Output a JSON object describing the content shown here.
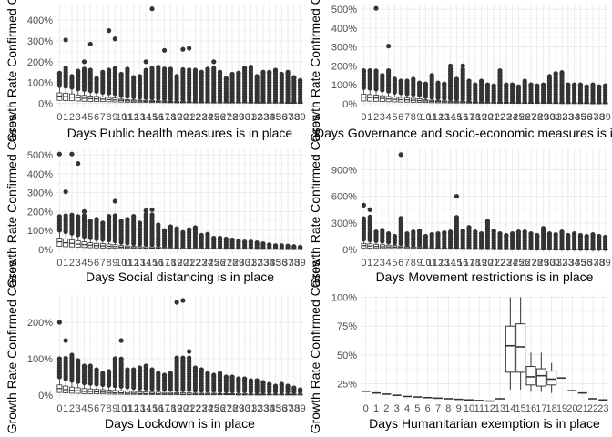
{
  "chart_data": [
    {
      "type": "boxplot",
      "xlabel": "Days Public health measures is in place",
      "ylabel": "Growth Rate Confirmed Cases",
      "yticks": [
        0,
        100,
        200,
        300,
        400
      ],
      "ylim": [
        -20,
        480
      ],
      "x_ticks": [
        "0",
        "1",
        "2",
        "3",
        "4",
        "5",
        "6",
        "7",
        "8",
        "9",
        "10",
        "11",
        "12",
        "13",
        "14",
        "15",
        "16",
        "17",
        "18",
        "19",
        "20",
        "21",
        "22",
        "23",
        "24",
        "25",
        "26",
        "27",
        "28",
        "29",
        "30",
        "31",
        "32",
        "33",
        "34",
        "35",
        "36",
        "37",
        "38",
        "39"
      ],
      "medians": [
        35,
        32,
        30,
        27,
        24,
        22,
        21,
        20,
        18,
        16,
        14,
        12,
        11,
        10,
        9,
        8,
        8,
        7,
        6,
        5,
        5,
        5,
        4,
        4,
        4,
        3,
        3,
        3,
        3,
        3,
        3,
        2,
        2,
        2,
        2,
        2,
        2,
        2,
        2,
        2
      ],
      "q3": [
        50,
        48,
        45,
        40,
        38,
        35,
        33,
        30,
        28,
        26,
        20,
        18,
        16,
        15,
        14,
        13,
        12,
        11,
        10,
        9,
        9,
        8,
        8,
        7,
        7,
        6,
        6,
        6,
        5,
        5,
        5,
        5,
        4,
        4,
        4,
        4,
        4,
        3,
        3,
        3
      ],
      "outlier_max": [
        145,
        305,
        130,
        155,
        200,
        285,
        120,
        150,
        350,
        310,
        140,
        165,
        125,
        130,
        200,
        455,
        175,
        255,
        165,
        130,
        260,
        265,
        160,
        150,
        165,
        200,
        150,
        120,
        140,
        145,
        170,
        175,
        130,
        150,
        150,
        160,
        140,
        150,
        125,
        110
      ]
    },
    {
      "type": "boxplot",
      "xlabel": "Days Governance and socio-economic measures is in place",
      "ylabel": "Growth Rate Confirmed Cases",
      "yticks": [
        0,
        100,
        200,
        300,
        400,
        500
      ],
      "ylim": [
        -20,
        530
      ],
      "x_ticks": [
        "0",
        "1",
        "2",
        "3",
        "4",
        "5",
        "6",
        "7",
        "8",
        "9",
        "10",
        "11",
        "12",
        "13",
        "14",
        "15",
        "16",
        "17",
        "18",
        "19",
        "20",
        "21",
        "22",
        "23",
        "24",
        "25",
        "26",
        "27",
        "28",
        "29",
        "30",
        "31",
        "32",
        "33",
        "34",
        "35",
        "36",
        "37",
        "38",
        "39"
      ],
      "medians": [
        35,
        32,
        30,
        28,
        25,
        23,
        21,
        20,
        18,
        16,
        14,
        12,
        11,
        10,
        9,
        8,
        8,
        7,
        6,
        5,
        5,
        5,
        4,
        4,
        4,
        3,
        3,
        3,
        3,
        3,
        3,
        2,
        2,
        2,
        2,
        2,
        2,
        2,
        2,
        2
      ],
      "q3": [
        50,
        48,
        45,
        42,
        38,
        35,
        33,
        30,
        28,
        26,
        20,
        18,
        16,
        15,
        14,
        13,
        12,
        11,
        10,
        9,
        9,
        8,
        8,
        7,
        7,
        6,
        6,
        6,
        5,
        5,
        5,
        5,
        4,
        4,
        4,
        4,
        4,
        3,
        3,
        3
      ],
      "outlier_max": [
        175,
        175,
        505,
        150,
        305,
        130,
        120,
        120,
        130,
        110,
        105,
        150,
        110,
        105,
        200,
        130,
        200,
        120,
        100,
        120,
        100,
        95,
        175,
        100,
        100,
        90,
        120,
        100,
        95,
        100,
        145,
        160,
        165,
        100,
        100,
        100,
        90,
        100,
        90,
        95
      ]
    },
    {
      "type": "boxplot",
      "xlabel": "Days Social distancing is in place",
      "ylabel": "Growth Rate Confirmed Cases",
      "yticks": [
        0,
        100,
        200,
        300,
        400,
        500
      ],
      "ylim": [
        -20,
        530
      ],
      "x_ticks": [
        "0",
        "1",
        "2",
        "3",
        "4",
        "5",
        "6",
        "7",
        "8",
        "9",
        "10",
        "11",
        "12",
        "13",
        "14",
        "15",
        "16",
        "17",
        "18",
        "19",
        "20",
        "21",
        "22",
        "23",
        "24",
        "25",
        "26",
        "27",
        "28",
        "29",
        "30",
        "31",
        "32",
        "33",
        "34",
        "35",
        "36",
        "37",
        "38",
        "39"
      ],
      "medians": [
        40,
        35,
        32,
        28,
        25,
        22,
        20,
        18,
        16,
        15,
        12,
        10,
        9,
        8,
        7,
        6,
        6,
        5,
        5,
        4,
        4,
        4,
        3,
        3,
        3,
        3,
        3,
        2,
        2,
        2,
        2,
        2,
        2,
        2,
        2,
        2,
        1,
        1,
        1,
        1
      ],
      "q3": [
        60,
        55,
        50,
        45,
        40,
        35,
        32,
        30,
        28,
        25,
        20,
        18,
        16,
        15,
        14,
        13,
        12,
        11,
        10,
        9,
        9,
        8,
        8,
        7,
        7,
        6,
        6,
        6,
        5,
        5,
        5,
        5,
        4,
        4,
        4,
        4,
        3,
        3,
        3,
        3
      ],
      "outlier_max": [
        505,
        305,
        505,
        455,
        200,
        150,
        160,
        140,
        175,
        255,
        150,
        160,
        175,
        140,
        205,
        210,
        130,
        100,
        120,
        110,
        90,
        105,
        115,
        75,
        80,
        60,
        60,
        55,
        50,
        45,
        40,
        40,
        35,
        30,
        25,
        20,
        20,
        18,
        15,
        12
      ]
    },
    {
      "type": "boxplot",
      "xlabel": "Days Movement restrictions is in place",
      "ylabel": "Growth Rate Confirmed Cases",
      "yticks": [
        0,
        300,
        600,
        900
      ],
      "ylim": [
        -40,
        1130
      ],
      "x_ticks": [
        "0",
        "1",
        "2",
        "3",
        "4",
        "5",
        "6",
        "7",
        "8",
        "9",
        "10",
        "11",
        "12",
        "13",
        "14",
        "15",
        "16",
        "17",
        "18",
        "19",
        "20",
        "21",
        "22",
        "23",
        "24",
        "25",
        "26",
        "27",
        "28",
        "29",
        "30",
        "31",
        "32",
        "33",
        "34",
        "35",
        "36",
        "37",
        "38",
        "39"
      ],
      "medians": [
        45,
        40,
        35,
        32,
        30,
        28,
        25,
        22,
        20,
        18,
        15,
        13,
        12,
        11,
        10,
        9,
        8,
        8,
        7,
        6,
        6,
        5,
        5,
        5,
        4,
        4,
        4,
        3,
        3,
        3,
        3,
        3,
        3,
        2,
        2,
        2,
        2,
        2,
        2,
        2
      ],
      "q3": [
        70,
        65,
        60,
        55,
        50,
        45,
        40,
        35,
        32,
        30,
        25,
        22,
        20,
        18,
        16,
        15,
        14,
        13,
        12,
        11,
        10,
        10,
        9,
        9,
        8,
        8,
        7,
        7,
        6,
        6,
        6,
        5,
        5,
        5,
        5,
        4,
        4,
        4,
        4,
        4
      ],
      "outlier_max": [
        500,
        450,
        200,
        220,
        180,
        150,
        1070,
        180,
        200,
        210,
        150,
        170,
        180,
        190,
        200,
        600,
        210,
        250,
        200,
        180,
        320,
        210,
        180,
        160,
        180,
        200,
        200,
        180,
        160,
        240,
        180,
        170,
        200,
        160,
        180,
        160,
        150,
        170,
        150,
        140
      ]
    },
    {
      "type": "boxplot",
      "xlabel": "Days Lockdown is in place",
      "ylabel": "Growth Rate Confirmed Cases",
      "yticks": [
        0,
        100,
        200
      ],
      "ylim": [
        -10,
        275
      ],
      "x_ticks": [
        "0",
        "1",
        "2",
        "3",
        "4",
        "5",
        "6",
        "7",
        "8",
        "9",
        "10",
        "11",
        "12",
        "13",
        "14",
        "15",
        "16",
        "17",
        "18",
        "19",
        "20",
        "21",
        "22",
        "23",
        "24",
        "25",
        "26",
        "27",
        "28",
        "29",
        "30",
        "31",
        "32",
        "33",
        "34",
        "35",
        "36",
        "37",
        "38",
        "39"
      ],
      "medians": [
        18,
        15,
        13,
        12,
        10,
        10,
        9,
        8,
        7,
        6,
        6,
        5,
        5,
        4,
        4,
        4,
        3,
        3,
        3,
        3,
        2,
        2,
        2,
        2,
        2,
        2,
        2,
        2,
        2,
        1,
        1,
        1,
        1,
        1,
        1,
        1,
        1,
        1,
        1,
        1
      ],
      "q3": [
        28,
        25,
        22,
        20,
        18,
        17,
        16,
        15,
        14,
        13,
        12,
        11,
        10,
        9,
        9,
        8,
        8,
        7,
        7,
        6,
        6,
        6,
        5,
        5,
        5,
        5,
        4,
        4,
        4,
        4,
        4,
        3,
        3,
        3,
        3,
        3,
        3,
        3,
        3,
        3
      ],
      "outlier_max": [
        200,
        150,
        110,
        95,
        80,
        80,
        70,
        60,
        65,
        100,
        150,
        70,
        70,
        75,
        80,
        70,
        60,
        55,
        60,
        255,
        260,
        120,
        75,
        70,
        60,
        55,
        60,
        50,
        50,
        45,
        45,
        40,
        40,
        35,
        30,
        25,
        30,
        25,
        20,
        15
      ]
    },
    {
      "type": "boxplot",
      "xlabel": "Days Humanitarian exemption is in place",
      "ylabel": "Growth Rate Confirmed Cases",
      "yticks": [
        25,
        50,
        75,
        100
      ],
      "ylim": [
        12,
        102
      ],
      "x_ticks": [
        "0",
        "1",
        "2",
        "3",
        "4",
        "5",
        "6",
        "7",
        "8",
        "9",
        "10",
        "11",
        "12",
        "13",
        "14",
        "15",
        "16",
        "17",
        "18",
        "19",
        "20",
        "21",
        "22",
        "23"
      ],
      "boxes": [
        {
          "q1": 18.5,
          "median": 18.5,
          "q3": 18.5
        },
        {
          "q1": 17,
          "median": 17,
          "q3": 17
        },
        {
          "q1": 16,
          "median": 16,
          "q3": 16
        },
        {
          "q1": 15,
          "median": 15,
          "q3": 15
        },
        {
          "q1": 14,
          "median": 14,
          "q3": 14
        },
        {
          "q1": 13.5,
          "median": 13.5,
          "q3": 13.5
        },
        {
          "q1": 13,
          "median": 13,
          "q3": 13
        },
        {
          "q1": 12.5,
          "median": 12.5,
          "q3": 12.5
        },
        {
          "q1": 12,
          "median": 12,
          "q3": 12
        },
        {
          "q1": 11.5,
          "median": 11.5,
          "q3": 11.5
        },
        {
          "q1": 11,
          "median": 11,
          "q3": 11
        },
        {
          "q1": 10.5,
          "median": 10.5,
          "q3": 10.5
        },
        {
          "q1": 10,
          "median": 10,
          "q3": 10
        },
        {
          "q1": 12,
          "median": 12,
          "q3": 12
        },
        {
          "q1": 35,
          "median": 58,
          "q3": 75,
          "lower": 20,
          "upper": 100
        },
        {
          "q1": 35,
          "median": 57,
          "q3": 77,
          "lower": 20,
          "upper": 100
        },
        {
          "q1": 24,
          "median": 31,
          "q3": 40,
          "lower": 18,
          "upper": 52
        },
        {
          "q1": 23,
          "median": 32,
          "q3": 38,
          "lower": 18,
          "upper": 52
        },
        {
          "q1": 24,
          "median": 29,
          "q3": 36,
          "lower": 17,
          "upper": 43
        },
        {
          "q1": 30,
          "median": 30,
          "q3": 30
        },
        {
          "q1": 19,
          "median": 19,
          "q3": 19
        },
        {
          "q1": 17,
          "median": 17,
          "q3": 17
        },
        {
          "q1": 12,
          "median": 12,
          "q3": 12
        },
        {
          "q1": 11,
          "median": 11,
          "q3": 11
        }
      ]
    }
  ]
}
